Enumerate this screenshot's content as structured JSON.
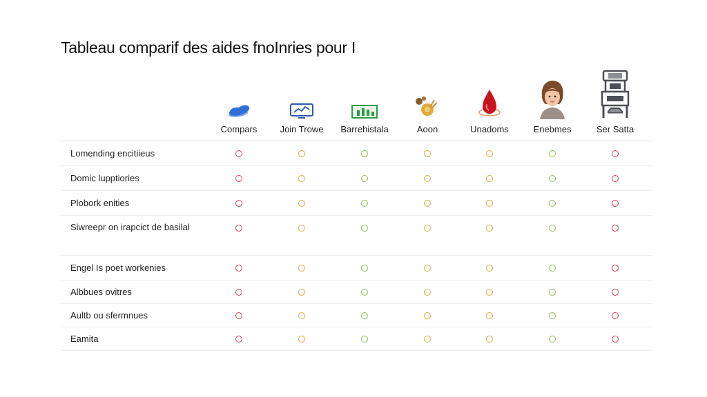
{
  "title": "Tableau comparif des aides fnoInries pour I",
  "colors": {
    "red": "#d9424f",
    "orange": "#e6a93a",
    "green": "#8bc34a"
  },
  "columns": [
    {
      "label": "Compars",
      "icon": "shoe-icon"
    },
    {
      "label": "Join Trowe",
      "icon": "chart-monitor-icon"
    },
    {
      "label": "Barrehistala",
      "icon": "bar-chart-icon"
    },
    {
      "label": "Aoon",
      "icon": "grain-icon"
    },
    {
      "label": "Unadoms",
      "icon": "drop-icon"
    },
    {
      "label": "Enebmes",
      "icon": "person-avatar-icon"
    },
    {
      "label": "Ser Satta",
      "icon": "machine-icon"
    }
  ],
  "rows": [
    {
      "label": "Lomending encitiieus",
      "values": [
        "red",
        "orange",
        "green",
        "orange",
        "orange",
        "green",
        "red"
      ]
    },
    {
      "label": "Domic lupptiories",
      "values": [
        "red",
        "orange",
        "green",
        "orange",
        "orange",
        "green",
        "red"
      ]
    },
    {
      "label": "Plobork enities",
      "values": [
        "red",
        "orange",
        "green",
        "orange",
        "orange",
        "green",
        "red"
      ]
    },
    {
      "label": "Siwreepr on irapcict de basilal",
      "values": [
        "red",
        "orange",
        "green",
        "orange",
        "orange",
        "green",
        "red"
      ]
    },
    {
      "label": "Engel Is poet workenies",
      "values": [
        "red",
        "orange",
        "green",
        "orange",
        "orange",
        "green",
        "red"
      ]
    },
    {
      "label": "Albbues ovitres",
      "values": [
        "red",
        "orange",
        "green",
        "orange",
        "orange",
        "green",
        "red"
      ]
    },
    {
      "label": "Aultb ou sfermnues",
      "values": [
        "red",
        "orange",
        "green",
        "orange",
        "orange",
        "green",
        "red"
      ]
    },
    {
      "label": "Eamita",
      "values": [
        "red",
        "orange",
        "green",
        "orange",
        "orange",
        "green",
        "red"
      ]
    }
  ]
}
